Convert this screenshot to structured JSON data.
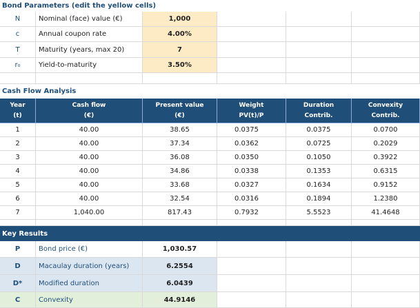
{
  "parameters": {
    "title": "Bond Parameters  (edit the yellow cells)",
    "rows": [
      {
        "symbol": "N",
        "label": "Nominal (face) value (€)",
        "value": "1,000"
      },
      {
        "symbol": "c",
        "label": "Annual coupon rate",
        "value": "4.00%"
      },
      {
        "symbol": "T",
        "label": "Maturity (years, max 20)",
        "value": "7"
      },
      {
        "symbol": "r₀",
        "label": "Yield-to-maturity",
        "value": "3.50%"
      }
    ]
  },
  "cash_flow": {
    "title": "Cash Flow Analysis",
    "header": [
      [
        "Year",
        "(t)"
      ],
      [
        "Cash flow",
        "(€)"
      ],
      [
        "Present value",
        "(€)"
      ],
      [
        "Weight",
        "PV(t)/P"
      ],
      [
        "Duration",
        "Contrib."
      ],
      [
        "Convexity",
        "Contrib."
      ]
    ],
    "rows": [
      [
        "1",
        "40.00",
        "38.65",
        "0.0375",
        "0.0375",
        "0.0700"
      ],
      [
        "2",
        "40.00",
        "37.34",
        "0.0362",
        "0.0725",
        "0.2029"
      ],
      [
        "3",
        "40.00",
        "36.08",
        "0.0350",
        "0.1050",
        "0.3922"
      ],
      [
        "4",
        "40.00",
        "34.86",
        "0.0338",
        "0.1353",
        "0.6315"
      ],
      [
        "5",
        "40.00",
        "33.68",
        "0.0327",
        "0.1634",
        "0.9152"
      ],
      [
        "6",
        "40.00",
        "32.54",
        "0.0316",
        "0.1894",
        "1.2380"
      ],
      [
        "7",
        "1,040.00",
        "817.43",
        "0.7932",
        "5.5523",
        "41.4648"
      ]
    ]
  },
  "results": {
    "title": "Key Results",
    "rows": [
      {
        "symbol": "P",
        "label": "Bond price (€)",
        "value": "1,030.57"
      },
      {
        "symbol": "D",
        "label": "Macaulay duration (years)",
        "value": "6.2554"
      },
      {
        "symbol": "D*",
        "label": "Modified duration",
        "value": "6.0439"
      },
      {
        "symbol": "C",
        "label": "Convexity",
        "value": "44.9146"
      }
    ]
  }
}
